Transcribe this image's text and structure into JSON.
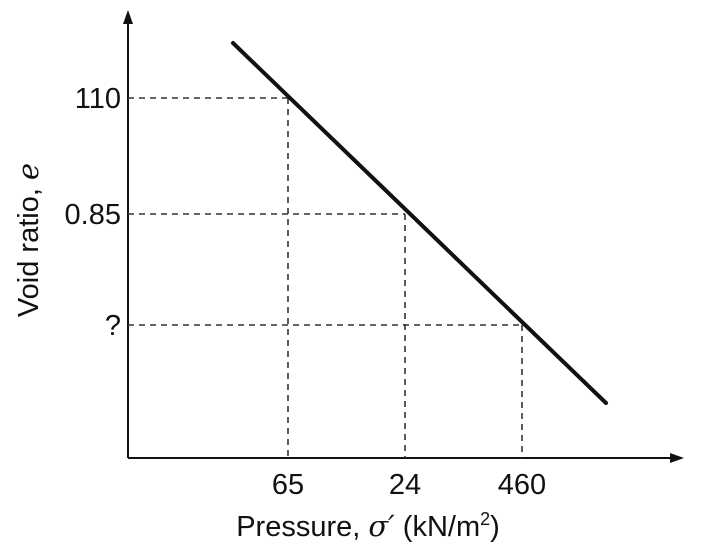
{
  "chart_data": {
    "type": "line",
    "title": "",
    "xlabel": "Pressure, σ′ (kN/m²)",
    "xlabel_prefix": "Pressure, ",
    "xlabel_symbol": "σ′",
    "xlabel_units_pre": " (kN/m",
    "xlabel_units_sup": "2",
    "xlabel_units_post": ")",
    "ylabel": "Void ratio, e",
    "ylabel_prefix": "Void ratio, ",
    "ylabel_symbol": "e",
    "xscale": "log",
    "grid": false,
    "x_ticks": [
      "65",
      "24",
      "460"
    ],
    "y_ticks": [
      "110",
      "0.85",
      "?"
    ],
    "reference_points": [
      {
        "x_label": "65",
        "y_label": "110"
      },
      {
        "x_label": "24",
        "y_label": "0.85"
      },
      {
        "x_label": "460",
        "y_label": "?"
      }
    ],
    "colors": {
      "line": "#111111",
      "dashed": "#333333"
    }
  }
}
